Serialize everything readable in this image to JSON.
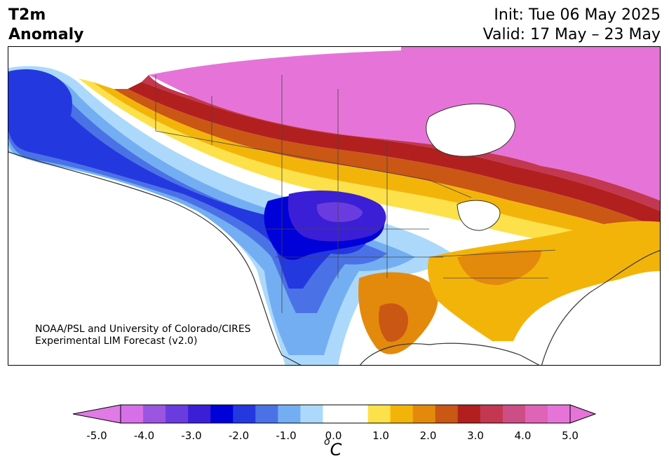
{
  "header": {
    "variable": "T2m",
    "product": "Anomaly",
    "init": "Init: Tue 06 May 2025",
    "valid": "Valid: 17 May – 23 May"
  },
  "credit": {
    "line1": "NOAA/PSL and University of Colorado/CIRES",
    "line2": "Experimental LIM Forecast (v2.0)"
  },
  "colorbar": {
    "unit_main": "C",
    "unit_sup": "o",
    "min": -5.0,
    "max": 5.0,
    "step": 0.5,
    "ticks": [
      "-5.0",
      "-4.0",
      "-3.0",
      "-2.0",
      "-1.0",
      "0.0",
      "1.0",
      "2.0",
      "3.0",
      "4.0",
      "5.0"
    ],
    "colors": [
      "#d76fe8",
      "#9b55e0",
      "#6a3ce0",
      "#3b1fd6",
      "#0000d8",
      "#2438e0",
      "#4a72e6",
      "#74aef2",
      "#acd9fb",
      "#ffffff",
      "#ffffff",
      "#fde14a",
      "#f3b40a",
      "#e38a0c",
      "#ca5714",
      "#b1201f",
      "#c33750",
      "#cd4d86",
      "#df63b6",
      "#e674d8"
    ],
    "under_color": "#df7ae6",
    "over_color": "#e674d8"
  },
  "map": {
    "land_default": "#ffffff",
    "coast_color": "#333333",
    "border_color": "#444444"
  }
}
